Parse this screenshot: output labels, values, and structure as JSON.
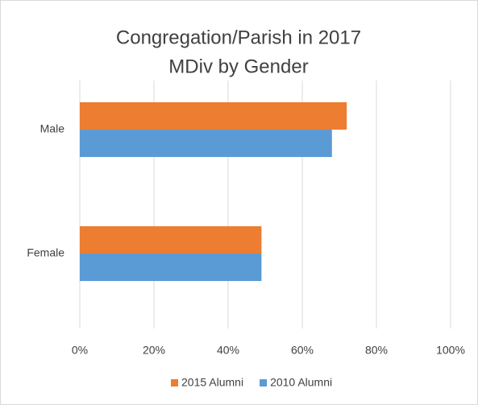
{
  "chart_data": {
    "type": "hbar",
    "title": "Congregation/Parish in 2017",
    "subtitle": "MDiv by Gender",
    "categories": [
      "Male",
      "Female"
    ],
    "series": [
      {
        "name": "2015 Alumni",
        "color": "#ED7D31",
        "values": [
          72,
          49
        ]
      },
      {
        "name": "2010 Alumni",
        "color": "#5B9BD5",
        "values": [
          68,
          49
        ]
      }
    ],
    "xlim": [
      0,
      100
    ],
    "xticks": [
      {
        "value": 0,
        "label": "0%"
      },
      {
        "value": 20,
        "label": "20%"
      },
      {
        "value": 40,
        "label": "40%"
      },
      {
        "value": 60,
        "label": "60%"
      },
      {
        "value": 80,
        "label": "80%"
      },
      {
        "value": 100,
        "label": "100%"
      }
    ],
    "grid": true,
    "legend": "bottom"
  }
}
